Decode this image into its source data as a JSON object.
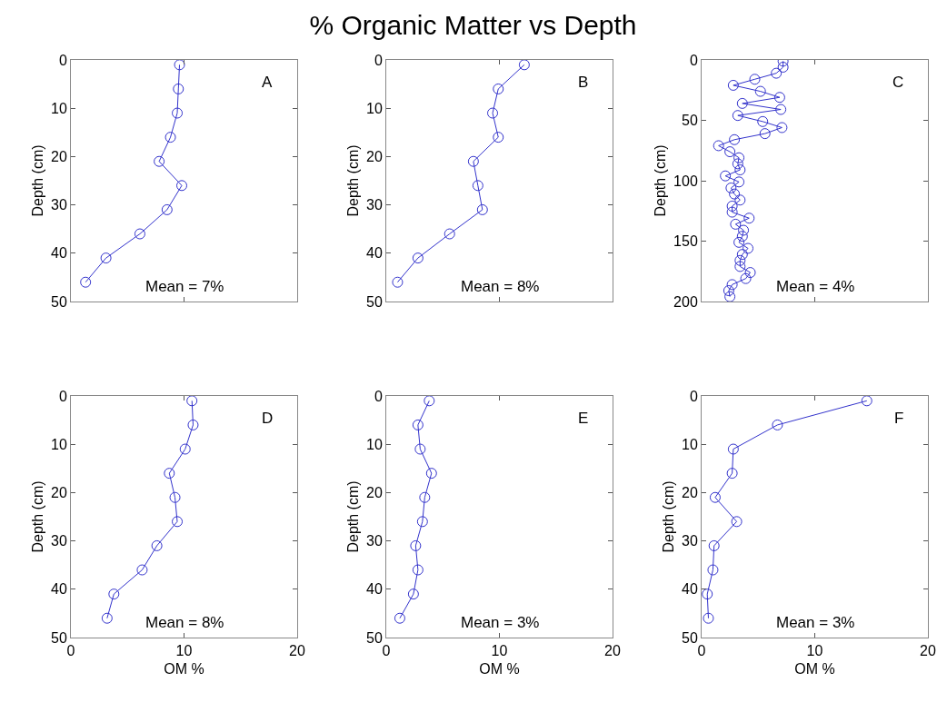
{
  "chart_data": [
    {
      "type": "line",
      "title": "% Organic Matter vs Depth",
      "ylabel": "Depth (cm)",
      "color": "#3333cc",
      "marker": "circle",
      "tick_labels": "y",
      "xlim": [
        0,
        20
      ],
      "xticks": [
        0,
        10,
        20
      ],
      "ylim": [
        50,
        0
      ],
      "yticks": [
        0,
        10,
        20,
        30,
        40,
        50
      ],
      "annotations": [
        "A",
        "Mean = 7%"
      ],
      "x": [
        9.6,
        9.5,
        9.4,
        8.8,
        7.8,
        9.8,
        8.5,
        6.1,
        3.1,
        1.3
      ],
      "values": [
        1,
        6,
        11,
        16,
        21,
        26,
        31,
        36,
        41,
        46
      ]
    },
    {
      "type": "line",
      "ylabel": "Depth (cm)",
      "color": "#3333cc",
      "marker": "circle",
      "tick_labels": "y",
      "xlim": [
        0,
        20
      ],
      "xticks": [
        0,
        10,
        20
      ],
      "ylim": [
        50,
        0
      ],
      "yticks": [
        0,
        10,
        20,
        30,
        40,
        50
      ],
      "annotations": [
        "B",
        "Mean = 8%"
      ],
      "x": [
        12.2,
        9.9,
        9.4,
        9.9,
        7.7,
        8.1,
        8.5,
        5.6,
        2.8,
        1.0
      ],
      "values": [
        1,
        6,
        11,
        16,
        21,
        26,
        31,
        36,
        41,
        46
      ]
    },
    {
      "type": "line",
      "ylabel": "Depth (cm)",
      "color": "#3333cc",
      "marker": "circle",
      "tick_labels": "y",
      "xlim": [
        0,
        20
      ],
      "xticks": [
        0,
        10,
        20
      ],
      "ylim": [
        200,
        0
      ],
      "yticks": [
        0,
        50,
        100,
        150,
        200
      ],
      "annotations": [
        "C",
        "Mean = 4%"
      ],
      "x": [
        7.2,
        7.2,
        6.6,
        4.7,
        2.8,
        5.2,
        6.9,
        3.6,
        7.0,
        3.2,
        5.4,
        7.1,
        5.6,
        2.9,
        1.5,
        2.5,
        3.3,
        3.2,
        3.4,
        2.1,
        3.3,
        2.6,
        2.9,
        3.4,
        2.7,
        2.7,
        4.2,
        3.0,
        3.7,
        3.6,
        3.3,
        4.1,
        3.6,
        3.4,
        3.4,
        4.3,
        3.9,
        2.7,
        2.4,
        2.5
      ],
      "values": [
        1,
        6,
        11,
        16,
        21,
        26,
        31,
        36,
        41,
        46,
        51,
        56,
        61,
        66,
        71,
        76,
        81,
        86,
        91,
        96,
        101,
        106,
        111,
        116,
        121,
        126,
        131,
        136,
        141,
        146,
        151,
        156,
        161,
        166,
        171,
        176,
        181,
        186,
        191,
        196
      ]
    },
    {
      "type": "line",
      "xlabel": "OM %",
      "ylabel": "Depth (cm)",
      "color": "#3333cc",
      "marker": "circle",
      "xlim": [
        0,
        20
      ],
      "xticks": [
        0,
        10,
        20
      ],
      "ylim": [
        50,
        0
      ],
      "yticks": [
        0,
        10,
        20,
        30,
        40,
        50
      ],
      "annotations": [
        "D",
        "Mean = 8%"
      ],
      "x": [
        10.7,
        10.8,
        10.1,
        8.7,
        9.2,
        9.4,
        7.6,
        6.3,
        3.8,
        3.2
      ],
      "values": [
        1,
        6,
        11,
        16,
        21,
        26,
        31,
        36,
        41,
        46
      ]
    },
    {
      "type": "line",
      "xlabel": "OM %",
      "ylabel": "Depth (cm)",
      "color": "#3333cc",
      "marker": "circle",
      "xlim": [
        0,
        20
      ],
      "xticks": [
        0,
        10,
        20
      ],
      "ylim": [
        50,
        0
      ],
      "yticks": [
        0,
        10,
        20,
        30,
        40,
        50
      ],
      "annotations": [
        "E",
        "Mean = 3%"
      ],
      "x": [
        3.8,
        2.8,
        3.0,
        4.0,
        3.4,
        3.2,
        2.6,
        2.8,
        2.4,
        1.2
      ],
      "values": [
        1,
        6,
        11,
        16,
        21,
        26,
        31,
        36,
        41,
        46
      ]
    },
    {
      "type": "line",
      "xlabel": "OM %",
      "ylabel": "Depth (cm)",
      "color": "#3333cc",
      "marker": "circle",
      "xlim": [
        0,
        20
      ],
      "xticks": [
        0,
        10,
        20
      ],
      "ylim": [
        50,
        0
      ],
      "yticks": [
        0,
        10,
        20,
        30,
        40,
        50
      ],
      "annotations": [
        "F",
        "Mean = 3%"
      ],
      "x": [
        14.6,
        6.7,
        2.8,
        2.7,
        1.2,
        3.1,
        1.1,
        1.0,
        0.5,
        0.6
      ],
      "values": [
        1,
        6,
        11,
        16,
        21,
        26,
        31,
        36,
        41,
        46
      ]
    }
  ]
}
